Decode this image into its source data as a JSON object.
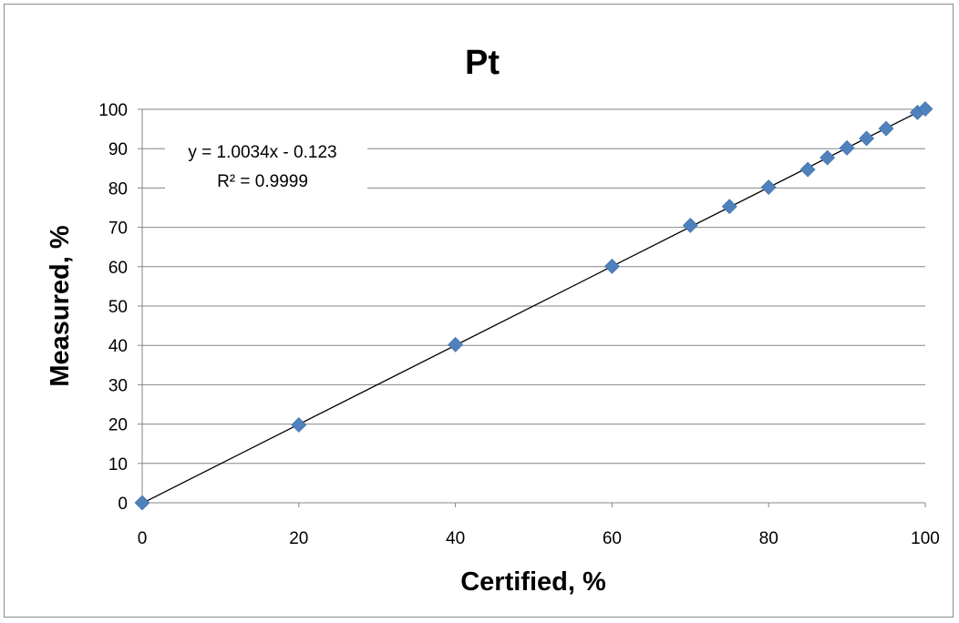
{
  "chart_data": {
    "type": "scatter",
    "title": "Pt",
    "xlabel": "Certified, %",
    "ylabel": "Measured, %",
    "xlim": [
      0,
      100
    ],
    "ylim": [
      0,
      100
    ],
    "x_ticks": [
      0,
      20,
      40,
      60,
      80,
      100
    ],
    "y_ticks": [
      0,
      10,
      20,
      30,
      40,
      50,
      60,
      70,
      80,
      90,
      100
    ],
    "grid": "horizontal",
    "legend": "none",
    "series": [
      {
        "marker": "diamond",
        "color": "#4f81bd",
        "points": [
          {
            "x": 0,
            "y": 0
          },
          {
            "x": 20,
            "y": 19.8
          },
          {
            "x": 40,
            "y": 40.2
          },
          {
            "x": 60,
            "y": 60.1
          },
          {
            "x": 70,
            "y": 70.5
          },
          {
            "x": 75,
            "y": 75.3
          },
          {
            "x": 80,
            "y": 80.2
          },
          {
            "x": 85,
            "y": 84.7
          },
          {
            "x": 87.5,
            "y": 87.7
          },
          {
            "x": 90,
            "y": 90.2
          },
          {
            "x": 92.5,
            "y": 92.6
          },
          {
            "x": 95,
            "y": 95.1
          },
          {
            "x": 99,
            "y": 99.2
          },
          {
            "x": 100,
            "y": 100.1
          }
        ]
      }
    ],
    "trendline": {
      "type": "linear",
      "slope": 1.0034,
      "intercept": -0.123,
      "color": "#000000",
      "equation": "y = 1.0034x - 0.123",
      "r_squared": "R² = 0.9999"
    }
  }
}
